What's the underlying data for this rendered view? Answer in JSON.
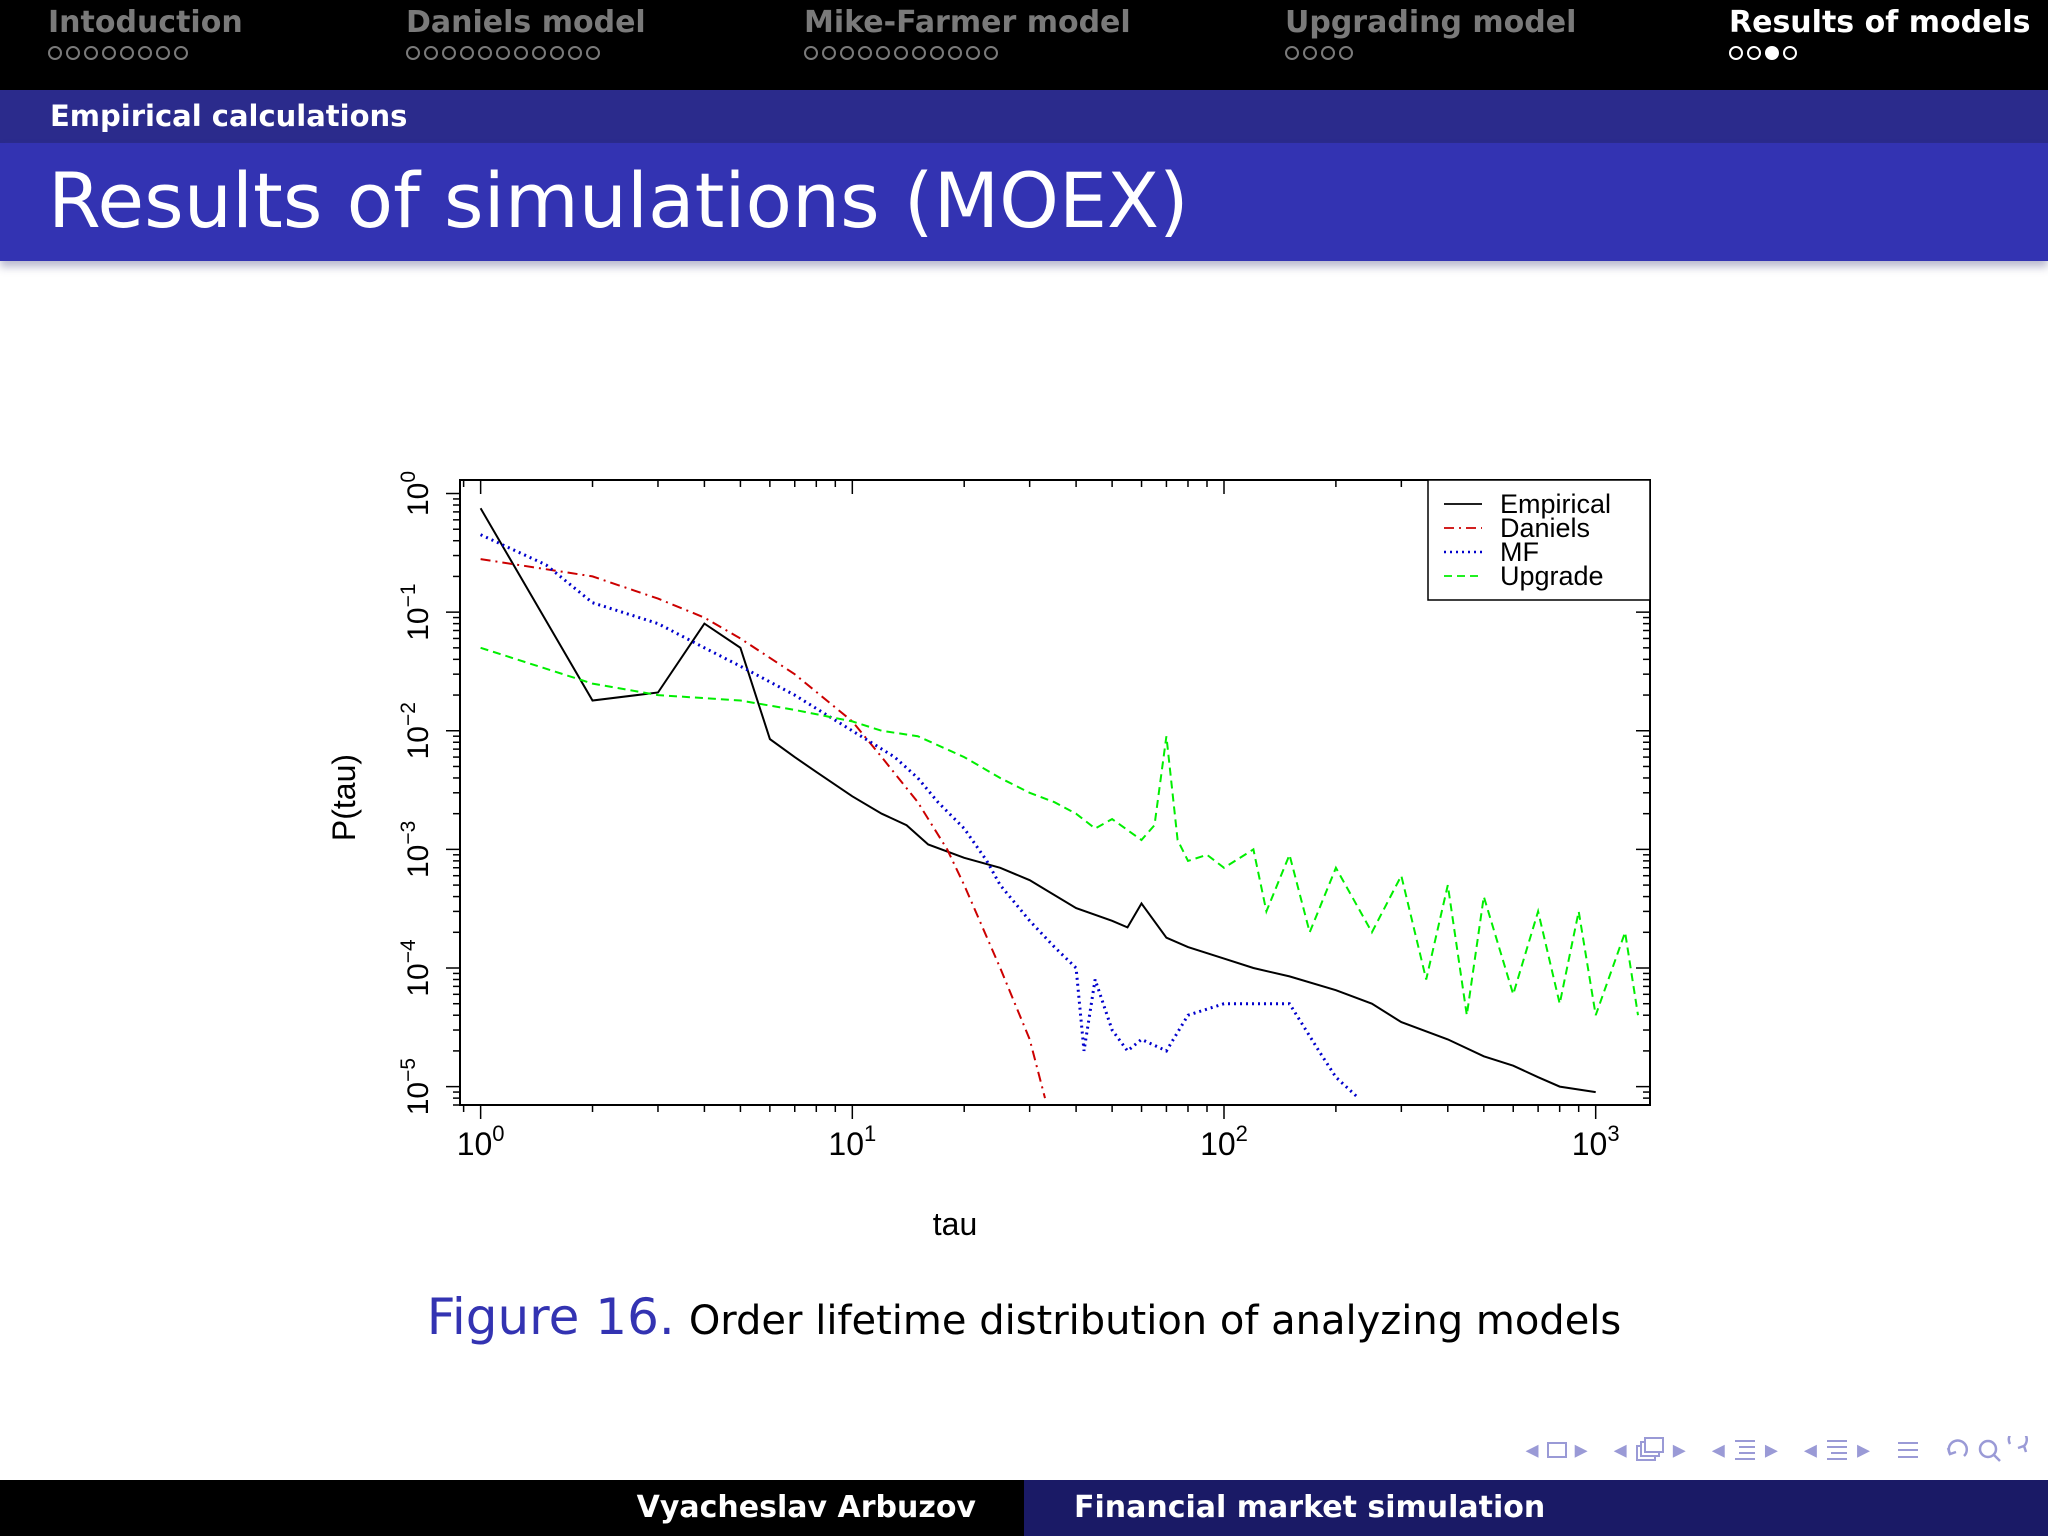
{
  "nav": {
    "sections": [
      {
        "title": "Intoduction",
        "dots": 8,
        "filled": -1,
        "active": false
      },
      {
        "title": "Daniels model",
        "dots": 11,
        "filled": -1,
        "active": false
      },
      {
        "title": "Mike-Farmer model",
        "dots": 11,
        "filled": -1,
        "active": false
      },
      {
        "title": "Upgrading model",
        "dots": 4,
        "filled": -1,
        "active": false
      },
      {
        "title": "Results of models",
        "dots": 4,
        "filled": 2,
        "active": true
      }
    ]
  },
  "subsection": "Empirical calculations",
  "frame_title": "Results of simulations (MOEX)",
  "caption": {
    "label": "Figure 16.",
    "text": "Order lifetime distribution of analyzing models"
  },
  "footer": {
    "author": "Vyacheslav Arbuzov",
    "title": "Financial market simulation"
  },
  "nav_symbols": [
    "frame-nav",
    "slide-nav",
    "subsection-nav",
    "section-nav",
    "document-nav",
    "search"
  ],
  "colors": {
    "accent": "#3333b2",
    "empirical": "#000000",
    "daniels": "#cc0000",
    "mf": "#0000cc",
    "upgrade": "#00ee00"
  },
  "chart_data": {
    "type": "line",
    "title": "",
    "xlabel": "tau",
    "ylabel": "P(tau)",
    "x_scale": "log",
    "y_scale": "log",
    "xlim": [
      0.88,
      1400
    ],
    "ylim": [
      7e-06,
      1.3
    ],
    "x_ticks": [
      {
        "base": "10",
        "exp": "0",
        "value": 1
      },
      {
        "base": "10",
        "exp": "1",
        "value": 10
      },
      {
        "base": "10",
        "exp": "2",
        "value": 100
      },
      {
        "base": "10",
        "exp": "3",
        "value": 1000
      }
    ],
    "y_ticks": [
      {
        "base": "10",
        "exp": "0",
        "value": 1
      },
      {
        "base": "10",
        "exp": "−1",
        "value": 0.1
      },
      {
        "base": "10",
        "exp": "−2",
        "value": 0.01
      },
      {
        "base": "10",
        "exp": "−3",
        "value": 0.001
      },
      {
        "base": "10",
        "exp": "−4",
        "value": 0.0001
      },
      {
        "base": "10",
        "exp": "−5",
        "value": 1e-05
      }
    ],
    "legend_position": "top-right",
    "grid": false,
    "series": [
      {
        "name": "Empirical",
        "color": "#000000",
        "style": "solid",
        "x": [
          1,
          2,
          3,
          4,
          5,
          6,
          7,
          8,
          10,
          12,
          14,
          16,
          20,
          25,
          30,
          40,
          50,
          55,
          60,
          70,
          80,
          100,
          120,
          150,
          200,
          250,
          300,
          400,
          500,
          600,
          700,
          800,
          1000
        ],
        "y": [
          0.75,
          0.018,
          0.021,
          0.08,
          0.05,
          0.0085,
          0.006,
          0.0045,
          0.0028,
          0.002,
          0.0016,
          0.0011,
          0.00085,
          0.0007,
          0.00055,
          0.00032,
          0.00025,
          0.00022,
          0.00035,
          0.00018,
          0.00015,
          0.00012,
          0.0001,
          8.5e-05,
          6.5e-05,
          5e-05,
          3.5e-05,
          2.5e-05,
          1.8e-05,
          1.5e-05,
          1.2e-05,
          1e-05,
          9e-06
        ]
      },
      {
        "name": "Daniels",
        "color": "#cc0000",
        "style": "dashdot",
        "x": [
          1,
          2,
          3,
          4,
          5,
          7,
          10,
          12,
          15,
          18,
          20,
          25,
          30,
          33
        ],
        "y": [
          0.28,
          0.2,
          0.13,
          0.09,
          0.06,
          0.03,
          0.012,
          0.006,
          0.0025,
          0.001,
          0.0005,
          0.0001,
          2.5e-05,
          8e-06
        ]
      },
      {
        "name": "MF",
        "color": "#0000cc",
        "style": "dotted",
        "x": [
          1,
          1.5,
          2,
          3,
          4,
          5,
          7,
          10,
          13,
          15,
          17,
          20,
          23,
          25,
          30,
          35,
          40,
          42,
          45,
          50,
          55,
          60,
          70,
          80,
          100,
          150,
          180,
          200,
          230
        ],
        "y": [
          0.45,
          0.25,
          0.12,
          0.08,
          0.05,
          0.035,
          0.02,
          0.01,
          0.006,
          0.004,
          0.0025,
          0.0015,
          0.0008,
          0.0005,
          0.00025,
          0.00015,
          0.0001,
          2e-05,
          8e-05,
          3e-05,
          2e-05,
          2.5e-05,
          2e-05,
          4e-05,
          5e-05,
          5e-05,
          2e-05,
          1.2e-05,
          8e-06
        ]
      },
      {
        "name": "Upgrade",
        "color": "#00ee00",
        "style": "dashed",
        "x": [
          1,
          2,
          3,
          5,
          7,
          10,
          12,
          15,
          20,
          25,
          30,
          35,
          40,
          45,
          50,
          60,
          65,
          70,
          75,
          80,
          90,
          100,
          120,
          130,
          150,
          170,
          200,
          250,
          300,
          350,
          400,
          450,
          500,
          600,
          700,
          800,
          900,
          1000,
          1200,
          1300
        ],
        "y": [
          0.05,
          0.025,
          0.02,
          0.018,
          0.015,
          0.012,
          0.01,
          0.009,
          0.006,
          0.004,
          0.003,
          0.0025,
          0.002,
          0.0015,
          0.0018,
          0.0012,
          0.0016,
          0.009,
          0.0012,
          0.0008,
          0.0009,
          0.0007,
          0.001,
          0.0003,
          0.0009,
          0.0002,
          0.0007,
          0.0002,
          0.0006,
          8e-05,
          0.0005,
          4e-05,
          0.0004,
          6e-05,
          0.0003,
          5e-05,
          0.0003,
          4e-05,
          0.0002,
          4e-05
        ]
      }
    ]
  }
}
